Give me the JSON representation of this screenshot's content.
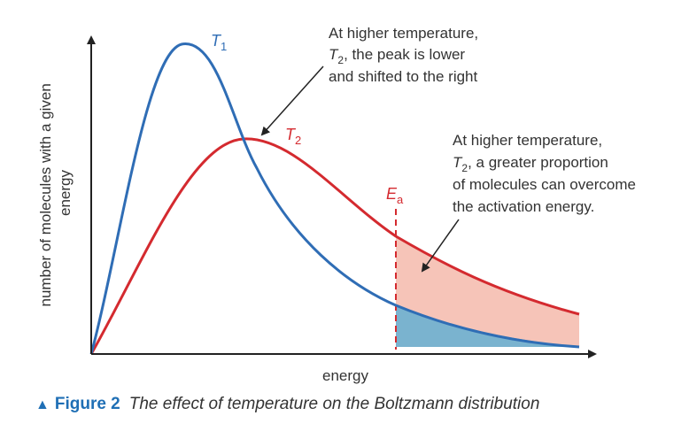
{
  "diagram": {
    "y_axis_label_line1": "number of molecules with a given",
    "y_axis_label_line2": "energy",
    "x_axis_label": "energy",
    "curve_t1": {
      "label": "T",
      "subscript": "1",
      "color": "#2f6db5"
    },
    "curve_t2": {
      "label": "T",
      "subscript": "2",
      "color": "#d42a2f"
    },
    "activation_energy": {
      "label": "E",
      "subscript": "a",
      "color": "#d42a2f"
    },
    "annotation_peak": {
      "line1": "At higher temperature,",
      "line2_symbol": "T",
      "line2_subscript": "2",
      "line2_rest": ", the peak is lower",
      "line3": "and shifted to the right"
    },
    "annotation_area": {
      "line1": "At higher temperature,",
      "line2_symbol": "T",
      "line2_subscript": "2",
      "line2_rest": ", a greater proportion",
      "line3": "of molecules can overcome",
      "line4": "the activation energy."
    },
    "fill_colors": {
      "t2_area": "#f6c4b8",
      "t1_area": "#7ab3cf"
    },
    "axis_color": "#222222"
  },
  "caption": {
    "figure_number": "Figure 2",
    "text": "The effect of temperature on the Boltzmann distribution"
  }
}
